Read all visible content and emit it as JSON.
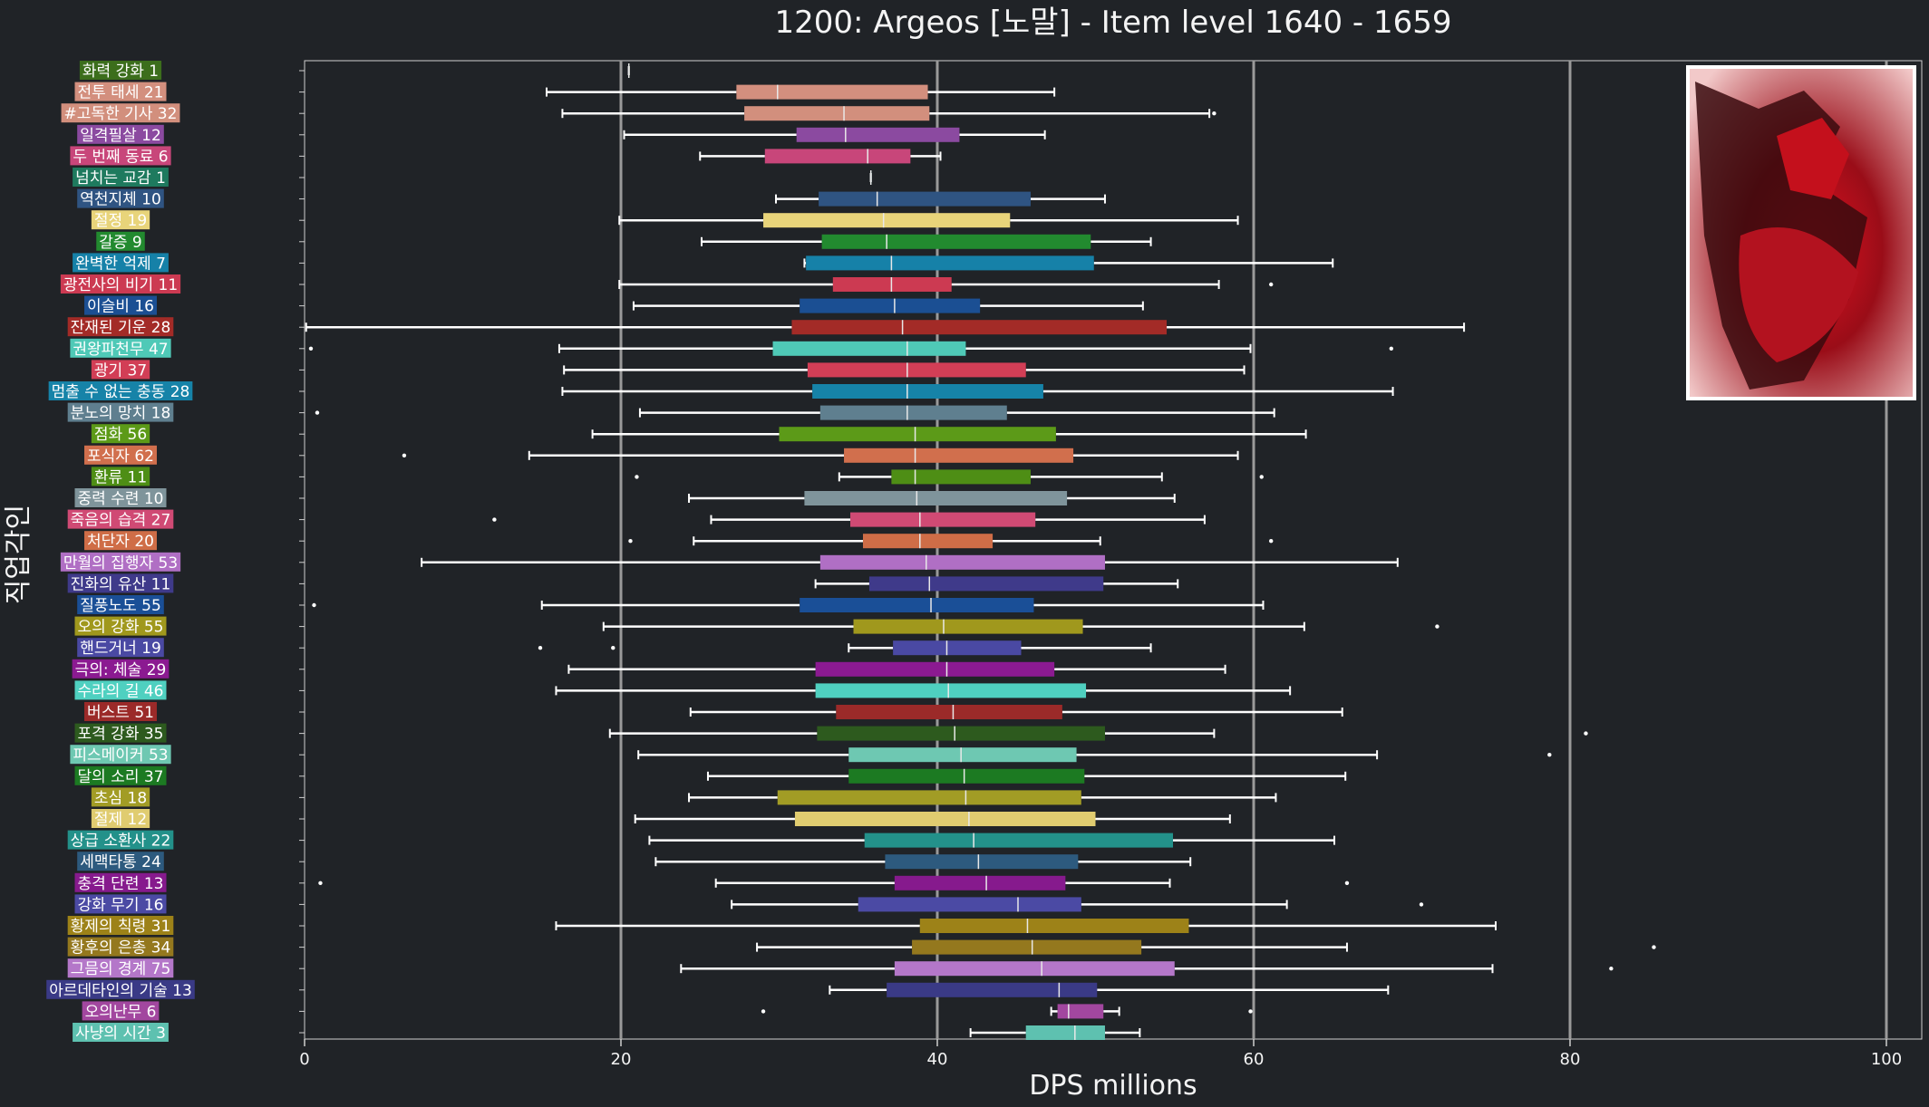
{
  "chart_data": {
    "type": "boxplot",
    "title": "1200: Argeos [노말] - Item level 1640 - 1659",
    "xlabel": "DPS millions",
    "ylabel": "직업각인",
    "xlim": [
      0,
      100
    ],
    "xticks": [
      0,
      20,
      40,
      60,
      80,
      100
    ],
    "grid": "vertical gridlines at x ticks",
    "image_inset": "argeos-boss-portrait",
    "categories": [
      {
        "label": "화력 강화 1",
        "color": "#3c6e1c",
        "min": 20.5,
        "q1": 20.5,
        "median": 20.5,
        "q3": 20.5,
        "max": 20.5,
        "outliers": []
      },
      {
        "label": "전투 태세 21",
        "color": "#d38f7e",
        "min": 15.3,
        "q1": 27.3,
        "median": 29.9,
        "q3": 39.4,
        "max": 47.4,
        "outliers": []
      },
      {
        "label": "#고독한 기사 32",
        "color": "#d28f7d",
        "min": 16.3,
        "q1": 27.8,
        "median": 34.1,
        "q3": 39.5,
        "max": 57.2,
        "outliers": [
          57.5
        ]
      },
      {
        "label": "일격필살 12",
        "color": "#8b4aa0",
        "min": 20.2,
        "q1": 31.1,
        "median": 34.2,
        "q3": 41.4,
        "max": 46.8,
        "outliers": []
      },
      {
        "label": "두 번째 동료 6",
        "color": "#c8467a",
        "min": 25.0,
        "q1": 29.1,
        "median": 35.6,
        "q3": 38.3,
        "max": 40.2,
        "outliers": []
      },
      {
        "label": "넘치는 교감 1",
        "color": "#1e7a5e",
        "min": 35.8,
        "q1": 35.8,
        "median": 35.8,
        "q3": 35.8,
        "max": 35.8,
        "outliers": []
      },
      {
        "label": "역천지체 10",
        "color": "#2f5482",
        "min": 29.8,
        "q1": 32.5,
        "median": 36.2,
        "q3": 45.9,
        "max": 50.6,
        "outliers": []
      },
      {
        "label": "절정 19",
        "color": "#e8d47a",
        "min": 19.9,
        "q1": 29.0,
        "median": 36.6,
        "q3": 44.6,
        "max": 59.0,
        "outliers": []
      },
      {
        "label": "갈증 9",
        "color": "#228a2f",
        "min": 25.1,
        "q1": 32.7,
        "median": 36.8,
        "q3": 49.7,
        "max": 53.5,
        "outliers": []
      },
      {
        "label": "완벽한 억제 7",
        "color": "#1681a8",
        "min": 31.6,
        "q1": 31.7,
        "median": 37.1,
        "q3": 49.9,
        "max": 65.0,
        "outliers": []
      },
      {
        "label": "광전사의 비기 11",
        "color": "#cc3a52",
        "min": 19.9,
        "q1": 33.4,
        "median": 37.1,
        "q3": 40.9,
        "max": 57.8,
        "outliers": [
          61.1
        ]
      },
      {
        "label": "이슬비 16",
        "color": "#1b4f93",
        "min": 20.8,
        "q1": 31.3,
        "median": 37.3,
        "q3": 42.7,
        "max": 53.0,
        "outliers": []
      },
      {
        "label": "잔재된 기운 28",
        "color": "#a32b27",
        "min": 0.1,
        "q1": 30.8,
        "median": 37.8,
        "q3": 54.5,
        "max": 73.3,
        "outliers": []
      },
      {
        "label": "권왕파천무 47",
        "color": "#4fc9b7",
        "min": 16.1,
        "q1": 29.6,
        "median": 38.1,
        "q3": 41.8,
        "max": 59.8,
        "outliers": [
          0.4,
          68.7
        ]
      },
      {
        "label": "광기 37",
        "color": "#d23e56",
        "min": 16.4,
        "q1": 31.8,
        "median": 38.1,
        "q3": 45.6,
        "max": 59.4,
        "outliers": []
      },
      {
        "label": "멈출 수 없는 충동 28",
        "color": "#1683a8",
        "min": 16.3,
        "q1": 32.1,
        "median": 38.1,
        "q3": 46.7,
        "max": 68.8,
        "outliers": []
      },
      {
        "label": "분노의 망치 18",
        "color": "#5f7f8f",
        "min": 21.2,
        "q1": 32.6,
        "median": 38.1,
        "q3": 44.4,
        "max": 61.3,
        "outliers": [
          0.8
        ]
      },
      {
        "label": "점화 56",
        "color": "#5c9a18",
        "min": 18.2,
        "q1": 30.0,
        "median": 38.6,
        "q3": 47.5,
        "max": 63.3,
        "outliers": []
      },
      {
        "label": "포식자 62",
        "color": "#d16f4d",
        "min": 14.2,
        "q1": 34.1,
        "median": 38.6,
        "q3": 48.6,
        "max": 59.0,
        "outliers": [
          6.3
        ]
      },
      {
        "label": "환류 11",
        "color": "#4e8e15",
        "min": 33.8,
        "q1": 37.1,
        "median": 38.6,
        "q3": 45.9,
        "max": 54.2,
        "outliers": [
          21.0,
          60.5
        ]
      },
      {
        "label": "중력 수련 10",
        "color": "#7f949b",
        "min": 24.3,
        "q1": 31.6,
        "median": 38.7,
        "q3": 48.2,
        "max": 55.0,
        "outliers": []
      },
      {
        "label": "죽음의 습격 27",
        "color": "#d04a74",
        "min": 25.7,
        "q1": 34.5,
        "median": 38.9,
        "q3": 46.2,
        "max": 56.9,
        "outliers": [
          12.0
        ]
      },
      {
        "label": "처단자 20",
        "color": "#cf6d47",
        "min": 24.6,
        "q1": 35.3,
        "median": 38.9,
        "q3": 43.5,
        "max": 50.3,
        "outliers": [
          20.6,
          61.1
        ]
      },
      {
        "label": "만월의 집행자 53",
        "color": "#b06fc4",
        "min": 7.4,
        "q1": 32.6,
        "median": 39.3,
        "q3": 50.6,
        "max": 69.1,
        "outliers": []
      },
      {
        "label": "진화의 유산 11",
        "color": "#3f3a8a",
        "min": 32.3,
        "q1": 35.7,
        "median": 39.5,
        "q3": 50.5,
        "max": 55.2,
        "outliers": []
      },
      {
        "label": "질풍노도 55",
        "color": "#1a4f97",
        "min": 15.0,
        "q1": 31.3,
        "median": 39.6,
        "q3": 46.1,
        "max": 60.6,
        "outliers": [
          0.6
        ]
      },
      {
        "label": "오의 강화 55",
        "color": "#a0981d",
        "min": 18.9,
        "q1": 34.7,
        "median": 40.4,
        "q3": 49.2,
        "max": 63.2,
        "outliers": [
          71.6
        ]
      },
      {
        "label": "핸드거너 19",
        "color": "#4a49a3",
        "min": 34.4,
        "q1": 37.2,
        "median": 40.6,
        "q3": 45.3,
        "max": 53.5,
        "outliers": [
          14.9,
          19.5
        ]
      },
      {
        "label": "극의: 체술 29",
        "color": "#8b1a91",
        "min": 16.7,
        "q1": 32.3,
        "median": 40.6,
        "q3": 47.4,
        "max": 58.2,
        "outliers": []
      },
      {
        "label": "수라의 길 46",
        "color": "#4fd0c0",
        "min": 15.9,
        "q1": 32.3,
        "median": 40.7,
        "q3": 49.4,
        "max": 62.3,
        "outliers": []
      },
      {
        "label": "버스트 51",
        "color": "#9b2a29",
        "min": 24.4,
        "q1": 33.6,
        "median": 41.0,
        "q3": 47.9,
        "max": 65.6,
        "outliers": []
      },
      {
        "label": "포격 강화 35",
        "color": "#2d5a1e",
        "min": 19.3,
        "q1": 32.4,
        "median": 41.1,
        "q3": 50.6,
        "max": 57.5,
        "outliers": [
          81.0
        ]
      },
      {
        "label": "피스메이커 53",
        "color": "#6ec8b2",
        "min": 21.1,
        "q1": 34.4,
        "median": 41.5,
        "q3": 48.8,
        "max": 67.8,
        "outliers": [
          78.7
        ]
      },
      {
        "label": "달의 소리 37",
        "color": "#1c7a22",
        "min": 25.5,
        "q1": 34.4,
        "median": 41.7,
        "q3": 49.3,
        "max": 65.8,
        "outliers": []
      },
      {
        "label": "초심 18",
        "color": "#a29c25",
        "min": 24.3,
        "q1": 29.9,
        "median": 41.8,
        "q3": 49.1,
        "max": 61.4,
        "outliers": []
      },
      {
        "label": "절제 12",
        "color": "#e0cc70",
        "min": 20.9,
        "q1": 31.0,
        "median": 42.0,
        "q3": 50.0,
        "max": 58.5,
        "outliers": []
      },
      {
        "label": "상급 소환사 22",
        "color": "#23918a",
        "min": 21.8,
        "q1": 35.4,
        "median": 42.3,
        "q3": 54.9,
        "max": 65.1,
        "outliers": []
      },
      {
        "label": "세맥타통 24",
        "color": "#2d5a7e",
        "min": 22.2,
        "q1": 36.7,
        "median": 42.6,
        "q3": 48.9,
        "max": 56.0,
        "outliers": []
      },
      {
        "label": "충격 단련 13",
        "color": "#861a8d",
        "min": 26.0,
        "q1": 37.3,
        "median": 43.1,
        "q3": 48.1,
        "max": 54.7,
        "outliers": [
          1.0,
          65.9
        ]
      },
      {
        "label": "강화 무기 16",
        "color": "#4b4aa4",
        "min": 27.0,
        "q1": 35.0,
        "median": 45.1,
        "q3": 49.1,
        "max": 62.1,
        "outliers": [
          70.6
        ]
      },
      {
        "label": "황제의 칙령 31",
        "color": "#9d8218",
        "min": 15.9,
        "q1": 38.9,
        "median": 45.7,
        "q3": 55.9,
        "max": 75.3,
        "outliers": []
      },
      {
        "label": "황후의 은총 34",
        "color": "#94781e",
        "min": 28.6,
        "q1": 38.4,
        "median": 46.0,
        "q3": 52.9,
        "max": 65.9,
        "outliers": [
          85.3
        ]
      },
      {
        "label": "그믐의 경계 75",
        "color": "#b477c9",
        "min": 23.8,
        "q1": 37.3,
        "median": 46.6,
        "q3": 55.0,
        "max": 75.1,
        "outliers": [
          82.6
        ]
      },
      {
        "label": "아르데타인의 기술 13",
        "color": "#3a3a86",
        "min": 33.2,
        "q1": 36.8,
        "median": 47.7,
        "q3": 50.1,
        "max": 68.5,
        "outliers": []
      },
      {
        "label": "오의난무 6",
        "color": "#a2479f",
        "min": 47.2,
        "q1": 47.6,
        "median": 48.3,
        "q3": 50.5,
        "max": 51.5,
        "outliers": [
          29.0,
          59.8
        ]
      },
      {
        "label": "사냥의 시간 3",
        "color": "#5ec1b0",
        "min": 42.1,
        "q1": 45.6,
        "median": 48.7,
        "q3": 50.6,
        "max": 52.8,
        "outliers": []
      }
    ]
  }
}
